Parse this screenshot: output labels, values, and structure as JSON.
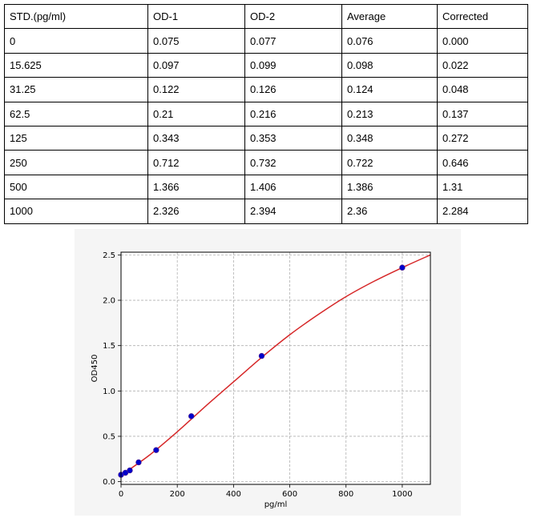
{
  "table": {
    "headers": [
      "STD.(pg/ml)",
      "OD-1",
      "OD-2",
      "Average",
      "Corrected"
    ],
    "rows": [
      [
        "0",
        "0.075",
        "0.077",
        "0.076",
        "0.000"
      ],
      [
        "15.625",
        "0.097",
        "0.099",
        "0.098",
        "0.022"
      ],
      [
        "31.25",
        "0.122",
        "0.126",
        "0.124",
        "0.048"
      ],
      [
        "62.5",
        "0.21",
        "0.216",
        "0.213",
        "0.137"
      ],
      [
        "125",
        "0.343",
        "0.353",
        "0.348",
        "0.272"
      ],
      [
        "250",
        "0.712",
        "0.732",
        "0.722",
        "0.646"
      ],
      [
        "500",
        "1.366",
        "1.406",
        "1.386",
        "1.31"
      ],
      [
        "1000",
        "2.326",
        "2.394",
        "2.36",
        "2.284"
      ]
    ]
  },
  "chart_data": {
    "type": "scatter",
    "title": "",
    "xlabel": "pg/ml",
    "ylabel": "OD450",
    "xlim": [
      0,
      1100
    ],
    "ylim": [
      -0.03,
      2.53
    ],
    "xticks": [
      0,
      200,
      400,
      600,
      800,
      1000
    ],
    "yticks": [
      0.0,
      0.5,
      1.0,
      1.5,
      2.0,
      2.5
    ],
    "grid": true,
    "series": [
      {
        "points": [
          {
            "x": 0,
            "y": 0.076
          },
          {
            "x": 15.625,
            "y": 0.098
          },
          {
            "x": 31.25,
            "y": 0.124
          },
          {
            "x": 62.5,
            "y": 0.213
          },
          {
            "x": 125,
            "y": 0.348
          },
          {
            "x": 250,
            "y": 0.722
          },
          {
            "x": 500,
            "y": 1.386
          },
          {
            "x": 1000,
            "y": 2.36
          }
        ],
        "color": "#0000cc"
      }
    ],
    "fit_curve": {
      "color": "#d62728",
      "points": [
        {
          "x": 0,
          "y": 0.07
        },
        {
          "x": 100,
          "y": 0.29
        },
        {
          "x": 200,
          "y": 0.55
        },
        {
          "x": 300,
          "y": 0.83
        },
        {
          "x": 400,
          "y": 1.1
        },
        {
          "x": 500,
          "y": 1.37
        },
        {
          "x": 600,
          "y": 1.62
        },
        {
          "x": 700,
          "y": 1.84
        },
        {
          "x": 800,
          "y": 2.04
        },
        {
          "x": 900,
          "y": 2.21
        },
        {
          "x": 1000,
          "y": 2.36
        },
        {
          "x": 1100,
          "y": 2.5
        }
      ]
    }
  }
}
